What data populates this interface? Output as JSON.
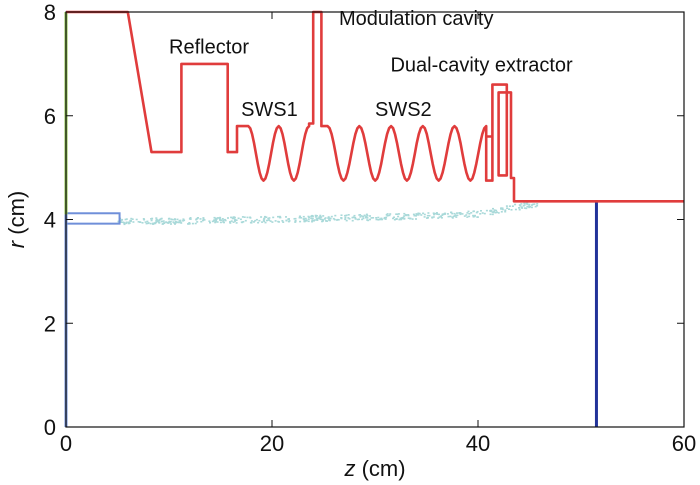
{
  "chart_data": {
    "type": "line",
    "xlabel": {
      "var": "z",
      "unit": "(cm)"
    },
    "ylabel": {
      "var": "r",
      "unit": "(cm)"
    },
    "xlim": [
      0,
      60
    ],
    "ylim": [
      0,
      8
    ],
    "x_ticks": [
      0,
      20,
      40,
      60
    ],
    "y_ticks": [
      0,
      2,
      4,
      6,
      8
    ],
    "grid": false,
    "annotations": [
      {
        "text": "Reflector",
        "z": 10,
        "r": 7.2
      },
      {
        "text": "SWS1",
        "z": 17,
        "r": 6.0
      },
      {
        "text": "SWS2",
        "z": 30,
        "r": 6.0
      },
      {
        "text": "Modulation cavity",
        "z": 26.5,
        "r": 7.75
      },
      {
        "text": "Dual-cavity extractor",
        "z": 31.5,
        "r": 6.85
      }
    ],
    "wall_color": "#e03c3c",
    "beam_color": "#a9d9d9",
    "input_port_color": "#8bc34a",
    "cathode_color": "#6f8fd9",
    "collector_color": "#223399"
  }
}
